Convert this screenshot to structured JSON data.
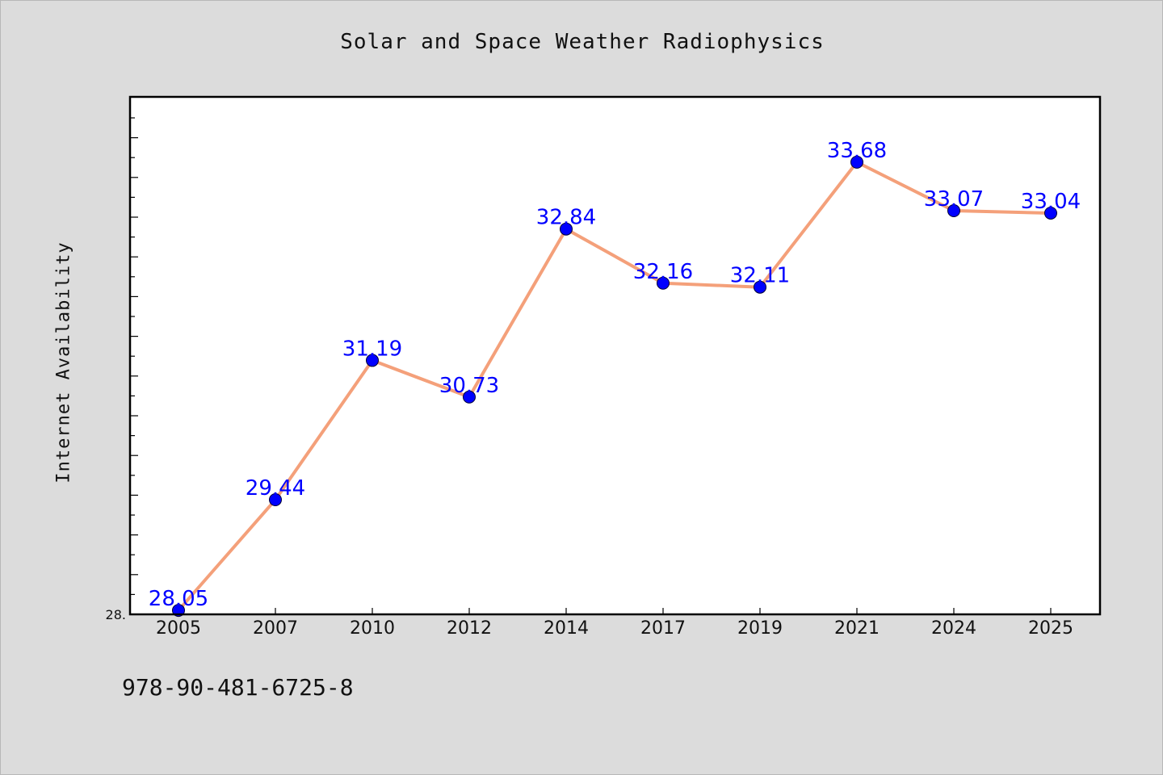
{
  "chart_data": {
    "type": "line",
    "title": "Solar and Space Weather Radiophysics",
    "ylabel": "Internet Availability",
    "xlabel": "",
    "categories": [
      "2005",
      "2007",
      "2010",
      "2012",
      "2014",
      "2017",
      "2019",
      "2021",
      "2024",
      "2025"
    ],
    "values": [
      28.05,
      29.44,
      31.19,
      30.73,
      32.84,
      32.16,
      32.11,
      33.68,
      33.07,
      33.04
    ],
    "data_labels": [
      "28.05",
      "29.44",
      "31.19",
      "30.73",
      "32.84",
      "32.16",
      "32.11",
      "33.68",
      "33.07",
      "33.04"
    ],
    "ylim": [
      28.0,
      34.5
    ],
    "y_tick_label": "28.",
    "line_color": "#f4a07a",
    "marker_color": "#0000ff",
    "label_color": "#0000ff",
    "grid": false,
    "legend": "none"
  },
  "footer": {
    "isbn": "978-90-481-6725-8"
  }
}
